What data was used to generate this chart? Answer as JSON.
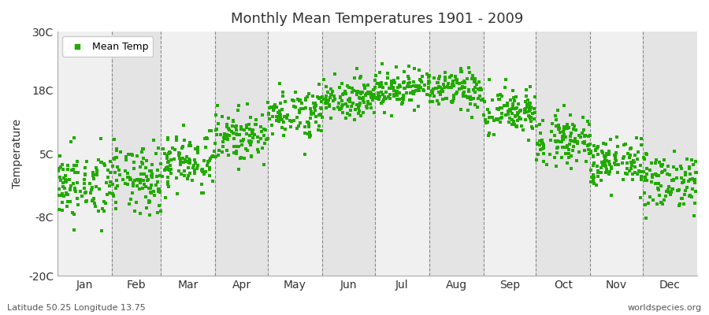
{
  "title": "Monthly Mean Temperatures 1901 - 2009",
  "ylabel": "Temperature",
  "xlabel_months": [
    "Jan",
    "Feb",
    "Mar",
    "Apr",
    "May",
    "Jun",
    "Jul",
    "Aug",
    "Sep",
    "Oct",
    "Nov",
    "Dec"
  ],
  "ylim": [
    -20,
    30
  ],
  "yticks": [
    -20,
    -8,
    5,
    18,
    30
  ],
  "ytick_labels": [
    "-20C",
    "-8C",
    "5C",
    "18C",
    "30C"
  ],
  "dot_color": "#22aa00",
  "bg_color_odd": "#f0f0f0",
  "bg_color_even": "#e4e4e4",
  "fig_bg_color": "#ffffff",
  "legend_label": "Mean Temp",
  "bottom_left": "Latitude 50.25 Longitude 13.75",
  "bottom_right": "worldspecies.org",
  "years": 109,
  "start_year": 1901,
  "monthly_means": [
    -1.5,
    -0.5,
    3.5,
    8.5,
    13.5,
    16.5,
    18.5,
    18.0,
    13.5,
    8.0,
    3.0,
    -0.5
  ],
  "monthly_stds": [
    3.5,
    3.5,
    3.0,
    2.5,
    2.5,
    2.0,
    2.0,
    2.0,
    2.5,
    2.5,
    2.5,
    3.0
  ],
  "dashed_line_color": "#888888",
  "spine_color": "#aaaaaa",
  "font_color": "#333333"
}
